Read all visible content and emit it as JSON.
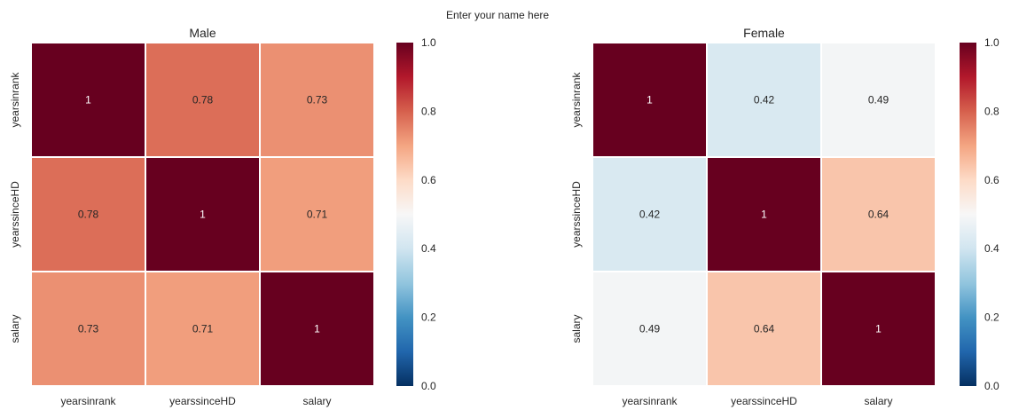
{
  "suptitle": "Enter your name here",
  "chart_data": [
    {
      "type": "heatmap",
      "title": "Male",
      "x_categories": [
        "yearsinrank",
        "yearssinceHD",
        "salary"
      ],
      "y_categories": [
        "yearsinrank",
        "yearssinceHD",
        "salary"
      ],
      "values": [
        [
          1,
          0.78,
          0.73
        ],
        [
          0.78,
          1,
          0.71
        ],
        [
          0.73,
          0.71,
          1
        ]
      ],
      "value_labels": [
        [
          "1",
          "0.78",
          "0.73"
        ],
        [
          "0.78",
          "1",
          "0.71"
        ],
        [
          "0.73",
          "0.71",
          "1"
        ]
      ],
      "vmin": 0,
      "vmax": 1,
      "colorbar_ticks": [
        "0.0",
        "0.2",
        "0.4",
        "0.6",
        "0.8",
        "1.0"
      ],
      "colormap": "RdBu_r"
    },
    {
      "type": "heatmap",
      "title": "Female",
      "x_categories": [
        "yearsinrank",
        "yearssinceHD",
        "salary"
      ],
      "y_categories": [
        "yearsinrank",
        "yearssinceHD",
        "salary"
      ],
      "values": [
        [
          1,
          0.42,
          0.49
        ],
        [
          0.42,
          1,
          0.64
        ],
        [
          0.49,
          0.64,
          1
        ]
      ],
      "value_labels": [
        [
          "1",
          "0.42",
          "0.49"
        ],
        [
          "0.42",
          "1",
          "0.64"
        ],
        [
          "0.49",
          "0.64",
          "1"
        ]
      ],
      "vmin": 0,
      "vmax": 1,
      "colorbar_ticks": [
        "0.0",
        "0.2",
        "0.4",
        "0.6",
        "0.8",
        "1.0"
      ],
      "colormap": "RdBu_r"
    }
  ]
}
